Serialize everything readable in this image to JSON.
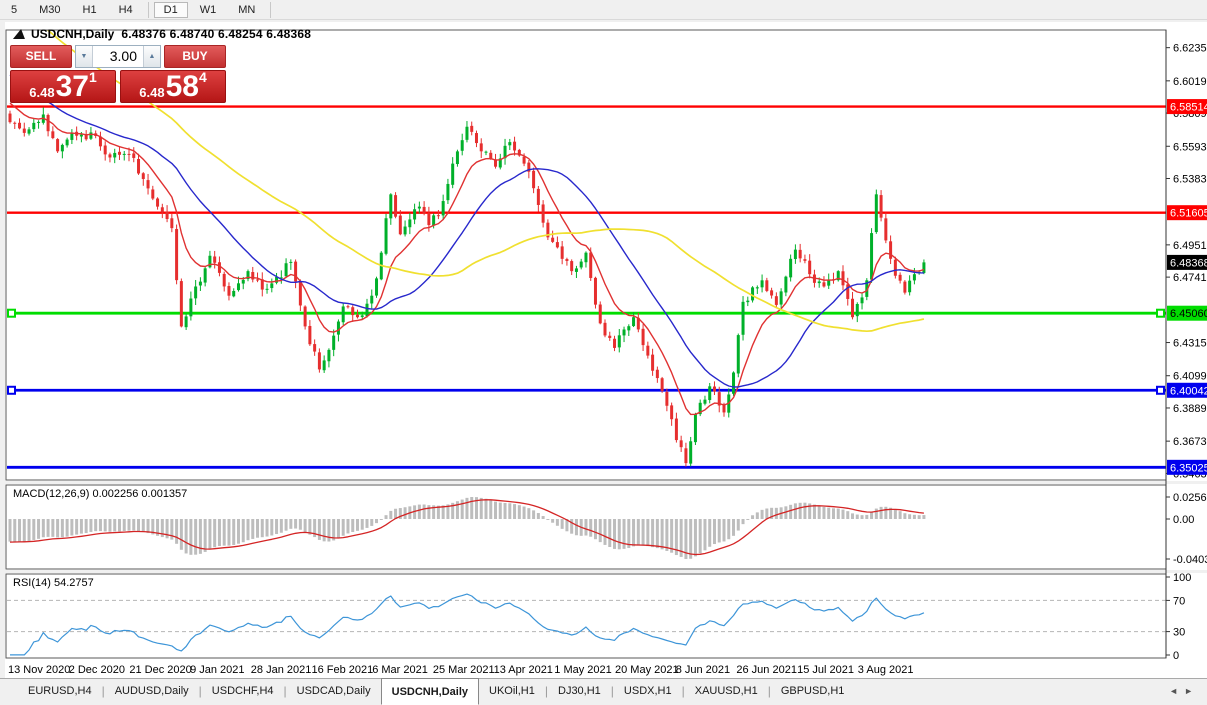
{
  "toolbar": {
    "items": [
      {
        "label": "5"
      },
      {
        "label": "M30"
      },
      {
        "label": "H1"
      },
      {
        "label": "H4"
      },
      {
        "sep": true
      },
      {
        "label": "D1",
        "active": true
      },
      {
        "label": "W1"
      },
      {
        "label": "MN"
      },
      {
        "sep": true
      }
    ]
  },
  "chart": {
    "title": {
      "symbol": "USDCNH,Daily",
      "quotes": "6.48376 6.48740 6.48254 6.48368"
    },
    "trade_panel": {
      "sell_label": "SELL",
      "buy_label": "BUY",
      "volume": "3.00",
      "sell_price": {
        "prefix": "6.48",
        "big": "37",
        "sup": "1"
      },
      "buy_price": {
        "prefix": "6.48",
        "big": "58",
        "sup": "4"
      }
    },
    "price_axis": {
      "ticks": [
        6.6235,
        6.6019,
        6.5809,
        6.5593,
        6.5383,
        6.4951,
        6.4741,
        6.4315,
        6.4099,
        6.3889,
        6.3673,
        6.3463
      ],
      "tags": [
        {
          "price": 6.58514,
          "bg": "#ff0000",
          "fg": "#ffffff"
        },
        {
          "price": 6.51605,
          "bg": "#ff0000",
          "fg": "#ffffff"
        },
        {
          "price": 6.48368,
          "bg": "#000000",
          "fg": "#ffffff"
        },
        {
          "price": 6.4506,
          "bg": "#00dd00",
          "fg": "#000000"
        },
        {
          "price": 6.40042,
          "bg": "#0000ee",
          "fg": "#ffffff"
        },
        {
          "price": 6.35025,
          "bg": "#0000ee",
          "fg": "#ffffff"
        }
      ]
    },
    "macd_panel": {
      "label": "MACD(12,26,9) 0.002256 0.001357",
      "axis_top": "0.025609",
      "axis_zero": "0.00",
      "axis_bottom": "-0.04038"
    },
    "rsi_panel": {
      "label": "RSI(14) 54.2757",
      "axis": [
        "100",
        "70",
        "30",
        "0"
      ]
    },
    "date_axis": [
      "13 Nov 2020",
      "2 Dec 2020",
      "21 Dec 2020",
      "9 Jan 2021",
      "28 Jan 2021",
      "16 Feb 2021",
      "6 Mar 2021",
      "25 Mar 2021",
      "13 Apr 2021",
      "1 May 2021",
      "20 May 2021",
      "8 Jun 2021",
      "26 Jun 2021",
      "15 Jul 2021",
      "3 Aug 2021"
    ]
  },
  "tabs": {
    "items": [
      {
        "label": "EURUSD,H4"
      },
      {
        "label": "AUDUSD,Daily"
      },
      {
        "label": "USDCHF,H4"
      },
      {
        "label": "USDCAD,Daily"
      },
      {
        "label": "USDCNH,Daily",
        "active": true
      },
      {
        "label": "UKOil,H1"
      },
      {
        "label": "DJ30,H1"
      },
      {
        "label": "USDX,H1"
      },
      {
        "label": "XAUUSD,H1"
      },
      {
        "label": "GBPUSD,H1"
      }
    ],
    "nav": "◄►"
  },
  "chart_data": {
    "type": "candlestick",
    "symbol": "USDCNH",
    "timeframe": "Daily",
    "current_ohlc": {
      "open": 6.48376,
      "high": 6.4874,
      "low": 6.48254,
      "close": 6.48368
    },
    "bid": "6.4837",
    "ask": "6.4858",
    "price_range": {
      "top": 6.635,
      "bottom": 6.342
    },
    "bars": 193,
    "seed": 7,
    "close_anchors": [
      [
        0,
        6.575
      ],
      [
        3,
        6.568
      ],
      [
        7,
        6.58
      ],
      [
        10,
        6.556
      ],
      [
        13,
        6.568
      ],
      [
        18,
        6.566
      ],
      [
        21,
        6.552
      ],
      [
        25,
        6.554
      ],
      [
        28,
        6.538
      ],
      [
        31,
        6.52
      ],
      [
        34,
        6.506
      ],
      [
        36,
        6.442
      ],
      [
        39,
        6.468
      ],
      [
        42,
        6.488
      ],
      [
        46,
        6.462
      ],
      [
        50,
        6.478
      ],
      [
        53,
        6.466
      ],
      [
        55,
        6.47
      ],
      [
        59,
        6.484
      ],
      [
        62,
        6.442
      ],
      [
        65,
        6.414
      ],
      [
        68,
        6.436
      ],
      [
        70,
        6.455
      ],
      [
        73,
        6.448
      ],
      [
        76,
        6.462
      ],
      [
        78,
        6.49
      ],
      [
        80,
        6.528
      ],
      [
        82,
        6.502
      ],
      [
        86,
        6.52
      ],
      [
        88,
        6.508
      ],
      [
        90,
        6.514
      ],
      [
        93,
        6.548
      ],
      [
        96,
        6.572
      ],
      [
        99,
        6.556
      ],
      [
        102,
        6.546
      ],
      [
        105,
        6.562
      ],
      [
        108,
        6.548
      ],
      [
        110,
        6.532
      ],
      [
        113,
        6.5
      ],
      [
        116,
        6.486
      ],
      [
        118,
        6.478
      ],
      [
        121,
        6.49
      ],
      [
        124,
        6.444
      ],
      [
        127,
        6.428
      ],
      [
        129,
        6.44
      ],
      [
        131,
        6.448
      ],
      [
        134,
        6.423
      ],
      [
        137,
        6.4
      ],
      [
        140,
        6.368
      ],
      [
        142,
        6.353
      ],
      [
        144,
        6.385
      ],
      [
        147,
        6.403
      ],
      [
        150,
        6.386
      ],
      [
        152,
        6.412
      ],
      [
        154,
        6.458
      ],
      [
        158,
        6.472
      ],
      [
        161,
        6.456
      ],
      [
        165,
        6.492
      ],
      [
        168,
        6.476
      ],
      [
        171,
        6.468
      ],
      [
        174,
        6.478
      ],
      [
        177,
        6.448
      ],
      [
        180,
        6.472
      ],
      [
        182,
        6.528
      ],
      [
        184,
        6.498
      ],
      [
        186,
        6.475
      ],
      [
        188,
        6.464
      ],
      [
        190,
        6.476
      ],
      [
        192,
        6.4837
      ]
    ],
    "prehistory_anchors": [
      [
        -60,
        6.745
      ],
      [
        -45,
        6.702
      ],
      [
        -30,
        6.655
      ],
      [
        -15,
        6.612
      ],
      [
        -8,
        6.595
      ],
      [
        -1,
        6.58
      ]
    ],
    "horizontal_levels": [
      {
        "price": 6.58514,
        "color": "#ff0000",
        "width": 2.4
      },
      {
        "price": 6.51605,
        "color": "#ff0000",
        "width": 2.4
      },
      {
        "price": 6.4506,
        "color": "#00dd00",
        "width": 2.8,
        "markers": true
      },
      {
        "price": 6.40042,
        "color": "#0000ee",
        "width": 2.8,
        "markers": true
      },
      {
        "price": 6.35025,
        "color": "#0000ee",
        "width": 2.8
      }
    ],
    "moving_averages": [
      {
        "name": "fast-ma",
        "type": "ema",
        "period": 10,
        "color": "#e03232"
      },
      {
        "name": "mid-ma",
        "type": "sma",
        "period": 25,
        "color": "#2828cc"
      },
      {
        "name": "slow-ma",
        "type": "sma",
        "period": 60,
        "color": "#f0e030"
      }
    ],
    "candle_colors": {
      "up": "#00b02a",
      "down": "#e62e2e"
    },
    "macd": {
      "params": [
        12,
        26,
        9
      ],
      "values": [
        0.002256,
        0.001357
      ],
      "axis_max": 0.025609,
      "axis_min": -0.04038,
      "histogram_color": "#bdbdbd",
      "signal_color": "#d42424"
    },
    "rsi": {
      "period": 14,
      "value": 54.2757,
      "levels": [
        70,
        30
      ],
      "color": "#3d95d8"
    }
  }
}
